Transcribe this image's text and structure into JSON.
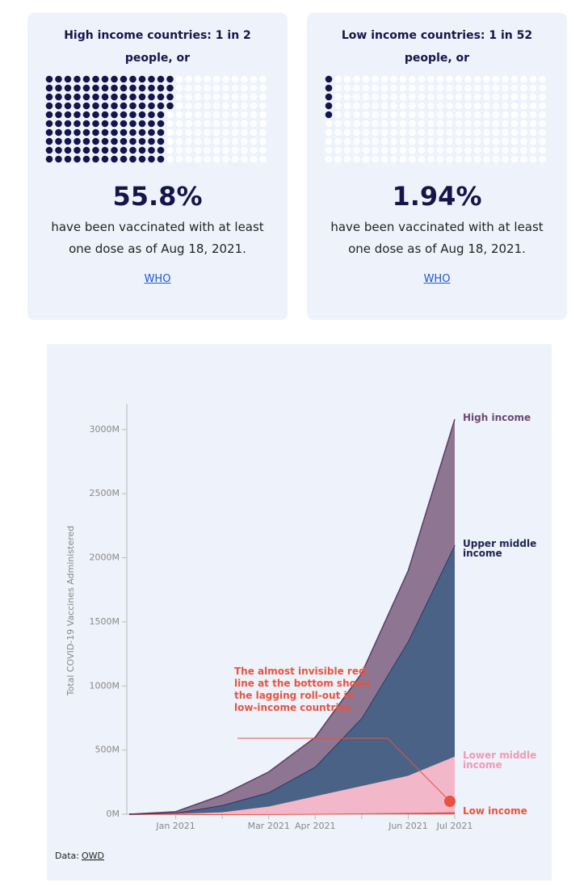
{
  "cards": [
    {
      "title": "High income countries: 1 in 2 people, or",
      "value": 55.8,
      "value_label": "55.8%",
      "description": "have been vaccinated with at least one dose as of Aug 18, 2021.",
      "link": "WHO"
    },
    {
      "title": "Low income countries: 1 in 52 people, or",
      "value": 1.94,
      "value_label": "1.94%",
      "description": "have been vaccinated with at least one dose as of Aug 18, 2021.",
      "link": "WHO"
    }
  ],
  "chart_data": {
    "type": "stacked_area",
    "y_label": "Total COVID-19 Vaccines Administered",
    "categories": [
      null,
      "Jan 2021",
      null,
      "Mar 2021",
      "Apr 2021",
      null,
      "Jun 2021",
      "Jul 2021"
    ],
    "series": [
      {
        "name": "Low income",
        "color": "#e8533f",
        "values": [
          0,
          0,
          0,
          1,
          3,
          6,
          10,
          15
        ]
      },
      {
        "name": "Lower middle income",
        "color": "#f2b8c9",
        "values": [
          0,
          2,
          15,
          59,
          137,
          214,
          290,
          435
        ]
      },
      {
        "name": "Upper middle income",
        "color": "#4a6285",
        "values": [
          0,
          8,
          55,
          110,
          230,
          530,
          1050,
          1650
        ]
      },
      {
        "name": "High income",
        "color": "#8e7592",
        "values": [
          0,
          10,
          80,
          160,
          230,
          350,
          550,
          980
        ]
      }
    ],
    "ylim": [
      0,
      3200
    ],
    "yticks": [
      {
        "value": 0,
        "label": "0M"
      },
      {
        "value": 500,
        "label": "500M"
      },
      {
        "value": 1000,
        "label": "1000M"
      },
      {
        "value": 1500,
        "label": "1500M"
      },
      {
        "value": 2000,
        "label": "2000M"
      },
      {
        "value": 2500,
        "label": "2500M"
      },
      {
        "value": 3000,
        "label": "3000M"
      }
    ],
    "annotation": "The almost invisible red line at the bottom shows the lagging roll-out in low-income countries",
    "source_prefix": "Data:",
    "source": "OWD"
  }
}
